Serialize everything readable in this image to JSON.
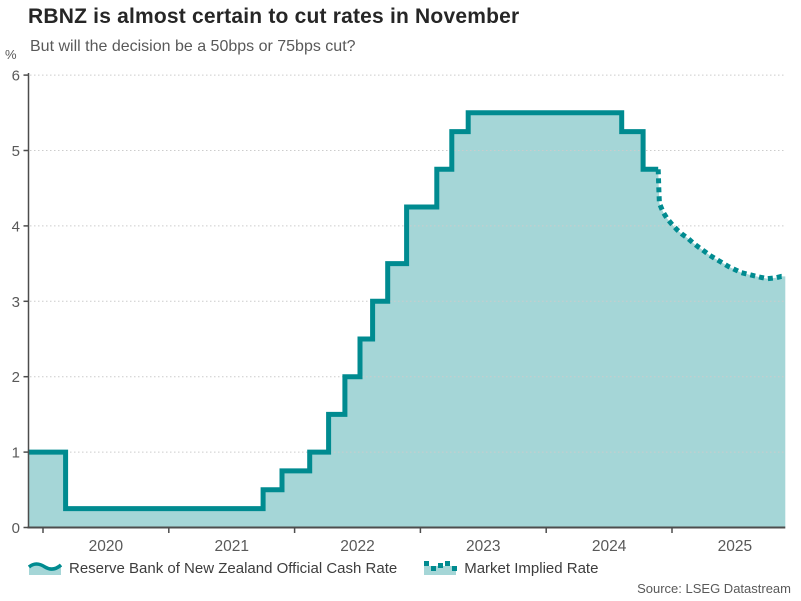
{
  "header": {
    "title": "RBNZ is almost certain to cut rates in November",
    "subtitle": "But will the decision be a 50bps or 75bps cut?"
  },
  "axes": {
    "y_unit": "%"
  },
  "legend": {
    "items": [
      {
        "label": "Reserve Bank of New Zealand Official Cash Rate"
      },
      {
        "label": "Market Implied Rate"
      }
    ]
  },
  "source": {
    "text": "Source: LSEG Datastream"
  },
  "chart_data": {
    "type": "area",
    "title": "RBNZ is almost certain to cut rates in November",
    "subtitle": "But will the decision be a 50bps or 75bps cut?",
    "xlabel": "",
    "ylabel": "%",
    "ylim": [
      0,
      6
    ],
    "xlim": [
      2019.88,
      2025.9
    ],
    "y_ticks": [
      0,
      1,
      2,
      3,
      4,
      5,
      6
    ],
    "x_ticks": [
      2020,
      2021,
      2022,
      2023,
      2024,
      2025
    ],
    "grid": "horizontal-dotted",
    "legend_position": "bottom",
    "series": [
      {
        "name": "Reserve Bank of New Zealand Official Cash Rate",
        "style": "step-solid-area",
        "note": "points are [decimal_year_of_change, new_rate_%]",
        "points": [
          [
            2019.88,
            1.0
          ],
          [
            2020.18,
            0.25
          ],
          [
            2021.75,
            0.5
          ],
          [
            2021.9,
            0.75
          ],
          [
            2022.12,
            1.0
          ],
          [
            2022.27,
            1.5
          ],
          [
            2022.4,
            2.0
          ],
          [
            2022.52,
            2.5
          ],
          [
            2022.62,
            3.0
          ],
          [
            2022.74,
            3.5
          ],
          [
            2022.89,
            4.25
          ],
          [
            2023.13,
            4.75
          ],
          [
            2023.25,
            5.25
          ],
          [
            2023.38,
            5.5
          ],
          [
            2024.6,
            5.25
          ],
          [
            2024.77,
            4.75
          ]
        ],
        "end_x": 2024.89
      },
      {
        "name": "Market Implied Rate",
        "style": "dotted-line",
        "points": [
          [
            2024.89,
            4.75
          ],
          [
            2024.895,
            4.5
          ],
          [
            2024.9,
            4.3
          ],
          [
            2024.93,
            4.18
          ],
          [
            2024.96,
            4.1
          ],
          [
            2025.0,
            4.02
          ],
          [
            2025.04,
            3.95
          ],
          [
            2025.08,
            3.89
          ],
          [
            2025.13,
            3.83
          ],
          [
            2025.17,
            3.77
          ],
          [
            2025.21,
            3.72
          ],
          [
            2025.26,
            3.66
          ],
          [
            2025.3,
            3.61
          ],
          [
            2025.35,
            3.56
          ],
          [
            2025.4,
            3.51
          ],
          [
            2025.45,
            3.46
          ],
          [
            2025.5,
            3.42
          ],
          [
            2025.55,
            3.38
          ],
          [
            2025.6,
            3.36
          ],
          [
            2025.65,
            3.34
          ],
          [
            2025.7,
            3.32
          ],
          [
            2025.76,
            3.3
          ],
          [
            2025.82,
            3.31
          ],
          [
            2025.87,
            3.33
          ],
          [
            2025.9,
            3.33
          ]
        ]
      }
    ],
    "colors": {
      "line": "#008b90",
      "fill": "#a5d6d7",
      "grid": "#cccccc",
      "axis": "#4d4d4d",
      "text": "#595959",
      "title": "#262626"
    }
  }
}
